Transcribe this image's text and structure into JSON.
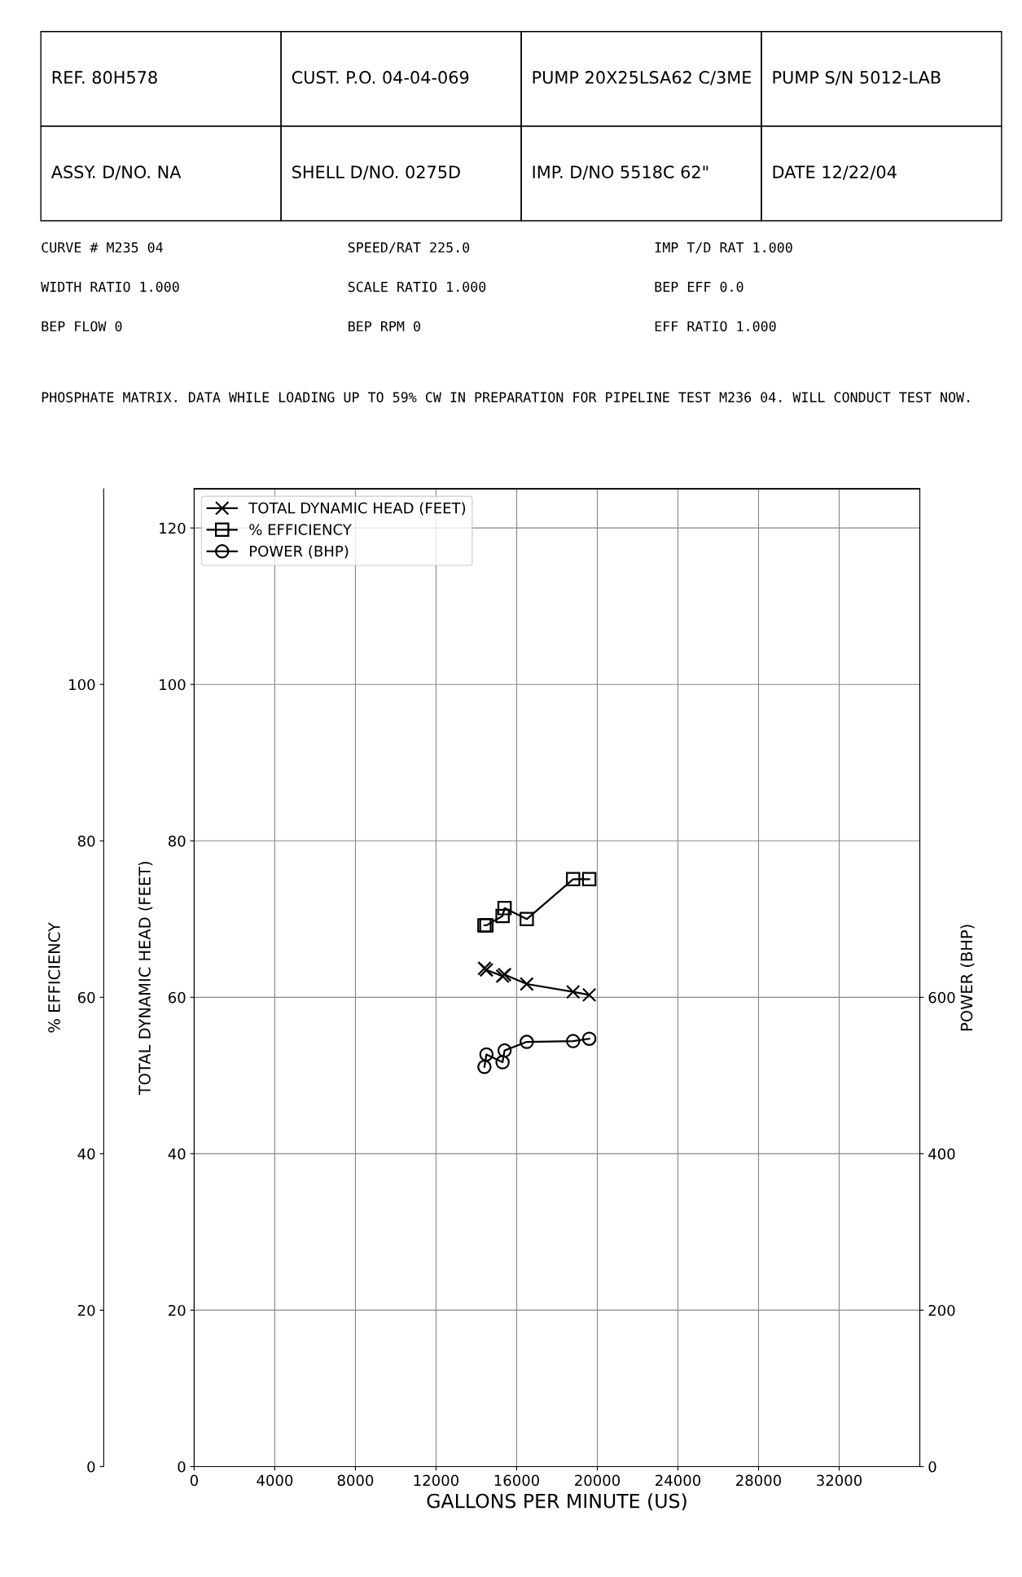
{
  "chart_data": {
    "type": "line",
    "xlabel": "GALLONS PER MINUTE (US)",
    "ylabel": "TOTAL DYNAMIC HEAD (FEET)",
    "y2label": "% EFFICIENCY",
    "y3label": "POWER (BHP)",
    "x": [
      19600,
      18800,
      16500,
      15400,
      15300,
      14500,
      14400
    ],
    "series": [
      {
        "name": "TOTAL DYNAMIC HEAD (FEET)",
        "color": "#000000",
        "marker": "cross",
        "values": [
          60.3,
          60.7,
          61.7,
          62.9,
          62.7,
          63.5,
          63.7
        ]
      },
      {
        "name": "% EFFICIENCY",
        "color": "#000000",
        "marker": "square",
        "axis": "y2",
        "values": [
          75.1,
          75.1,
          70.0,
          71.4,
          70.4,
          69.2,
          69.2
        ]
      },
      {
        "name": "POWER (BHP)",
        "color": "#000000",
        "marker": "circle",
        "axis": "y3",
        "values": [
          547,
          544,
          543,
          532,
          517,
          527,
          511
        ]
      }
    ],
    "xlim": [
      0,
      36000
    ],
    "xticks": [
      0,
      4000,
      8000,
      12000,
      16000,
      20000,
      24000,
      28000,
      32000
    ],
    "ylim": [
      0,
      125
    ],
    "yticks": [
      0,
      20,
      40,
      60,
      80,
      100,
      120
    ],
    "y2lim": [
      0,
      125
    ],
    "y2ticks": [
      0,
      20,
      40,
      60,
      80,
      100
    ],
    "y3lim": [
      0,
      1250
    ],
    "y3ticks": [
      0,
      200,
      400,
      600
    ],
    "grid": true,
    "legend": "top left",
    "line_style": "solid",
    "annotations": [
      "REF. 80H578",
      "CUST. P.O. 04-04-069",
      "PUMP 20X25LSA62 C/3ME",
      "PUMP S/N 5012-LAB",
      "ASSY. D/NO. NA",
      "SHELL D/NO. 0275D",
      "IMP. D/NO 5518C 62\"",
      "DATE 12/22/04",
      "CURVE # M235 04",
      "SPEED/RAT 225.0",
      "IMP T/D RAT 1.000",
      "WIDTH RATIO 1.000",
      "SCALE RATIO 1.000",
      "BEP EFF 0.0",
      "BEP FLOW 0",
      "BEP RPM 0",
      "EFF RATIO 1.000",
      "PHOSPHATE MATRIX. DATA WHILE LOADING UP TO 59% CW IN PREPARATION FOR PIPELINE TEST M236 04. WILL CONDUCT TEST NOW."
    ]
  }
}
